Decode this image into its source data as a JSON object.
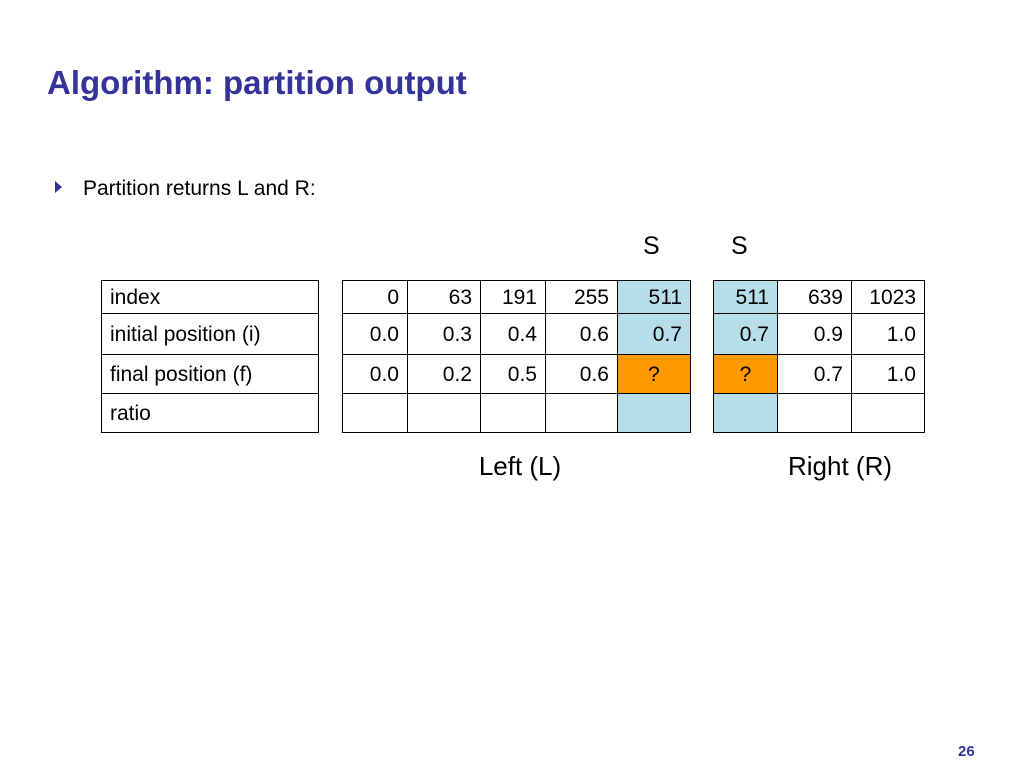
{
  "title": "Algorithm: partition output",
  "bullet": "Partition returns L and R:",
  "split_labels": [
    "S",
    "S"
  ],
  "tables": {
    "labels": {
      "rows": [
        "index",
        "initial position (i)",
        "final position (f)",
        "ratio"
      ]
    },
    "left": {
      "caption": "Left (L)",
      "rows": [
        [
          "0",
          "63",
          "191",
          "255",
          "511"
        ],
        [
          "0.0",
          "0.3",
          "0.4",
          "0.6",
          "0.7"
        ],
        [
          "0.0",
          "0.2",
          "0.5",
          "0.6",
          "?"
        ]
      ]
    },
    "right": {
      "caption": "Right (R)",
      "rows": [
        [
          "511",
          "639",
          "1023"
        ],
        [
          "0.7",
          "0.9",
          "1.0"
        ],
        [
          "?",
          "0.7",
          "1.0"
        ]
      ]
    }
  },
  "page_number": "26"
}
